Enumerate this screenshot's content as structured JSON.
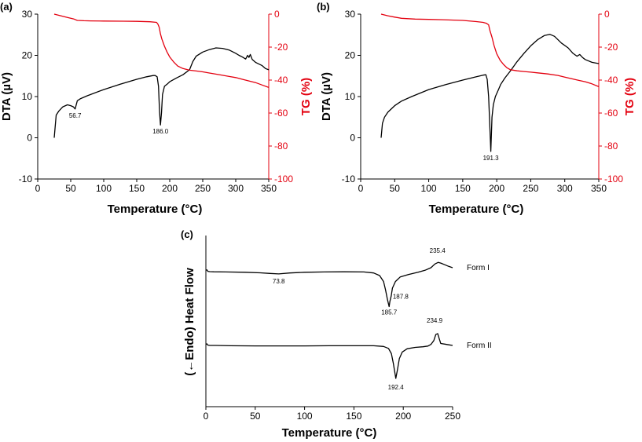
{
  "chart_data": [
    {
      "panel": "(a)",
      "type": "line",
      "xlabel": "Temperature (°C)",
      "ylabel": "DTA (µV)",
      "y2label": "TG (%)",
      "xlim": [
        0,
        350
      ],
      "ylim": [
        -10,
        30
      ],
      "y2lim": [
        -100,
        0
      ],
      "xticks": [
        "0",
        "50",
        "100",
        "150",
        "200",
        "250",
        "300",
        "350"
      ],
      "yticks": [
        "-10",
        "0",
        "10",
        "20",
        "30"
      ],
      "y2ticks": [
        "0",
        "-20",
        "-40",
        "-60",
        "-80",
        "-100"
      ],
      "colors": {
        "dta": "#000000",
        "tg": "#e3000f"
      },
      "series": [
        {
          "name": "DTA",
          "axis": "left",
          "x": [
            25,
            28,
            32,
            38,
            45,
            50,
            54,
            56.7,
            60,
            65,
            75,
            100,
            125,
            150,
            165,
            175,
            178,
            181,
            183,
            184.5,
            186,
            187.5,
            189,
            192,
            196,
            200,
            210,
            220,
            230,
            235,
            240,
            250,
            260,
            270,
            280,
            290,
            300,
            305,
            310,
            315,
            318,
            320,
            322,
            325,
            330,
            340,
            345,
            350
          ],
          "y": [
            0,
            5.5,
            6.5,
            7.5,
            8,
            7.8,
            7.5,
            7,
            9,
            9.5,
            10.2,
            11.7,
            13,
            14.2,
            14.8,
            15.1,
            15.1,
            14.8,
            12.5,
            6.5,
            3.1,
            6,
            10.5,
            12.5,
            13,
            13.6,
            14.5,
            15.3,
            16.5,
            18.5,
            19.8,
            20.8,
            21.4,
            21.8,
            21.7,
            21.3,
            20.5,
            20,
            19.6,
            19.1,
            20,
            19.5,
            20.2,
            19,
            18.3,
            17.5,
            16.8,
            16.5
          ]
        },
        {
          "name": "TG",
          "axis": "right",
          "x": [
            25,
            35,
            45,
            55,
            60,
            70,
            80,
            100,
            130,
            150,
            170,
            180,
            182,
            184,
            186,
            188,
            192,
            196,
            200,
            206,
            212,
            220,
            230,
            240,
            250,
            260,
            275,
            290,
            300,
            310,
            320,
            330,
            340,
            350
          ],
          "y": [
            0,
            -1,
            -2,
            -3,
            -3.8,
            -4,
            -4.1,
            -4.2,
            -4.3,
            -4.4,
            -4.6,
            -5,
            -6,
            -8,
            -12,
            -15,
            -19.5,
            -23,
            -26,
            -29,
            -31.5,
            -33,
            -34,
            -34.5,
            -35,
            -35.7,
            -36.7,
            -37.8,
            -38.5,
            -39.5,
            -40.5,
            -41.5,
            -43,
            -44.5
          ]
        }
      ],
      "annotations": [
        {
          "text": "56.7",
          "x": 56.7,
          "y": 7
        },
        {
          "text": "186.0",
          "x": 186,
          "y": 3.1
        }
      ]
    },
    {
      "panel": "(b)",
      "type": "line",
      "xlabel": "Temperature (°C)",
      "ylabel": "DTA (µV)",
      "y2label": "TG (%)",
      "xlim": [
        0,
        350
      ],
      "ylim": [
        -10,
        30
      ],
      "y2lim": [
        -100,
        0
      ],
      "xticks": [
        "0",
        "50",
        "100",
        "150",
        "200",
        "250",
        "300",
        "350"
      ],
      "yticks": [
        "-10",
        "0",
        "10",
        "20",
        "30"
      ],
      "y2ticks": [
        "0",
        "-20",
        "-40",
        "-60",
        "-80",
        "-100"
      ],
      "colors": {
        "dta": "#000000",
        "tg": "#e3000f"
      },
      "series": [
        {
          "name": "DTA",
          "axis": "left",
          "x": [
            30,
            32,
            35,
            40,
            50,
            60,
            75,
            100,
            125,
            150,
            170,
            180,
            184,
            186,
            188,
            189.5,
            191.3,
            193,
            195,
            198,
            202,
            206,
            212,
            220,
            230,
            240,
            250,
            260,
            270,
            278,
            285,
            295,
            305,
            312,
            318,
            322,
            326,
            330,
            340,
            350
          ],
          "y": [
            0,
            3.5,
            5,
            6.2,
            7.8,
            8.9,
            10,
            11.7,
            12.9,
            14,
            14.8,
            15.2,
            15.3,
            14.2,
            10,
            4,
            -3.3,
            5,
            8,
            10,
            11.5,
            13,
            14.5,
            16.2,
            18.5,
            20.5,
            22.3,
            23.8,
            24.8,
            25.1,
            24.6,
            23,
            21.8,
            20.5,
            19.8,
            20.2,
            19.5,
            19,
            18.3,
            18
          ]
        },
        {
          "name": "TG",
          "axis": "right",
          "x": [
            30,
            40,
            50,
            60,
            80,
            100,
            120,
            150,
            170,
            180,
            185,
            188,
            190,
            193,
            196,
            200,
            205,
            210,
            215,
            220,
            230,
            240,
            250,
            260,
            275,
            290,
            300,
            310,
            320,
            330,
            340,
            350
          ],
          "y": [
            0,
            -1,
            -1.8,
            -2.5,
            -3,
            -3.2,
            -3.4,
            -3.8,
            -4.5,
            -5,
            -5.6,
            -6.5,
            -10,
            -14,
            -19,
            -24,
            -28,
            -30.5,
            -32.5,
            -33.7,
            -34.4,
            -34.8,
            -35.2,
            -35.6,
            -36.3,
            -37.2,
            -38.2,
            -39.2,
            -40.1,
            -41,
            -42.3,
            -44
          ]
        }
      ],
      "annotations": [
        {
          "text": "191.3",
          "x": 191.3,
          "y": -3.3
        }
      ]
    },
    {
      "panel": "(c)",
      "type": "line",
      "xlabel": "Temperature (°C)",
      "ylabel": "(←Endo) Heat Flow",
      "xlim": [
        0,
        250
      ],
      "xticks": [
        "0",
        "50",
        "100",
        "150",
        "200",
        "250"
      ],
      "yticks_shown": false,
      "colors": {
        "line": "#000000"
      },
      "series": [
        {
          "name": "Form I",
          "x": [
            0,
            1,
            2,
            4,
            8,
            20,
            40,
            55,
            65,
            73.8,
            85,
            100,
            120,
            140,
            160,
            170,
            176,
            180,
            182,
            184,
            185.7,
            186.5,
            187.8,
            189,
            192,
            197,
            205,
            215,
            222,
            228,
            232,
            235.4,
            238,
            242,
            246,
            250
          ],
          "y": [
            0.4,
            0.55,
            0.1,
            0,
            -0.05,
            -0.1,
            -0.2,
            -0.35,
            -0.55,
            -0.7,
            -0.4,
            -0.2,
            -0.1,
            -0.05,
            -0.1,
            -0.4,
            -1.2,
            -3,
            -5.5,
            -8.5,
            -10.6,
            -9,
            -7.3,
            -5,
            -3,
            -1.6,
            -0.9,
            -0.2,
            0.4,
            1.2,
            2.3,
            2.8,
            2.6,
            2.1,
            1.6,
            1.2
          ]
        },
        {
          "name": "Form II",
          "x": [
            0,
            1,
            2,
            4,
            10,
            25,
            50,
            75,
            100,
            125,
            150,
            170,
            180,
            185,
            188,
            190,
            192.4,
            194,
            196,
            199,
            204,
            212,
            220,
            225,
            228,
            231,
            233,
            234.9,
            236.5,
            238,
            242,
            246,
            250
          ],
          "y": [
            0.3,
            0.5,
            0.1,
            0,
            0,
            -0.1,
            -0.15,
            -0.15,
            -0.15,
            -0.1,
            -0.1,
            -0.1,
            -0.3,
            -0.9,
            -2.5,
            -5.5,
            -10,
            -7.5,
            -4,
            -2,
            -1,
            -0.6,
            -0.4,
            -0.2,
            0.3,
            1.5,
            3.3,
            3.6,
            2,
            0.6,
            0.4,
            0.2,
            0
          ]
        }
      ],
      "annotations": [
        {
          "text": "73.8",
          "series": "Form I",
          "x": 73.8
        },
        {
          "text": "185.7",
          "series": "Form I",
          "x": 185.7
        },
        {
          "text": "187.8",
          "series": "Form I",
          "x": 187.8
        },
        {
          "text": "235.4",
          "series": "Form I",
          "x": 235.4
        },
        {
          "text": "192.4",
          "series": "Form II",
          "x": 192.4
        },
        {
          "text": "234.9",
          "series": "Form II",
          "x": 234.9
        }
      ],
      "legend": [
        "Form I",
        "Form II"
      ]
    }
  ]
}
